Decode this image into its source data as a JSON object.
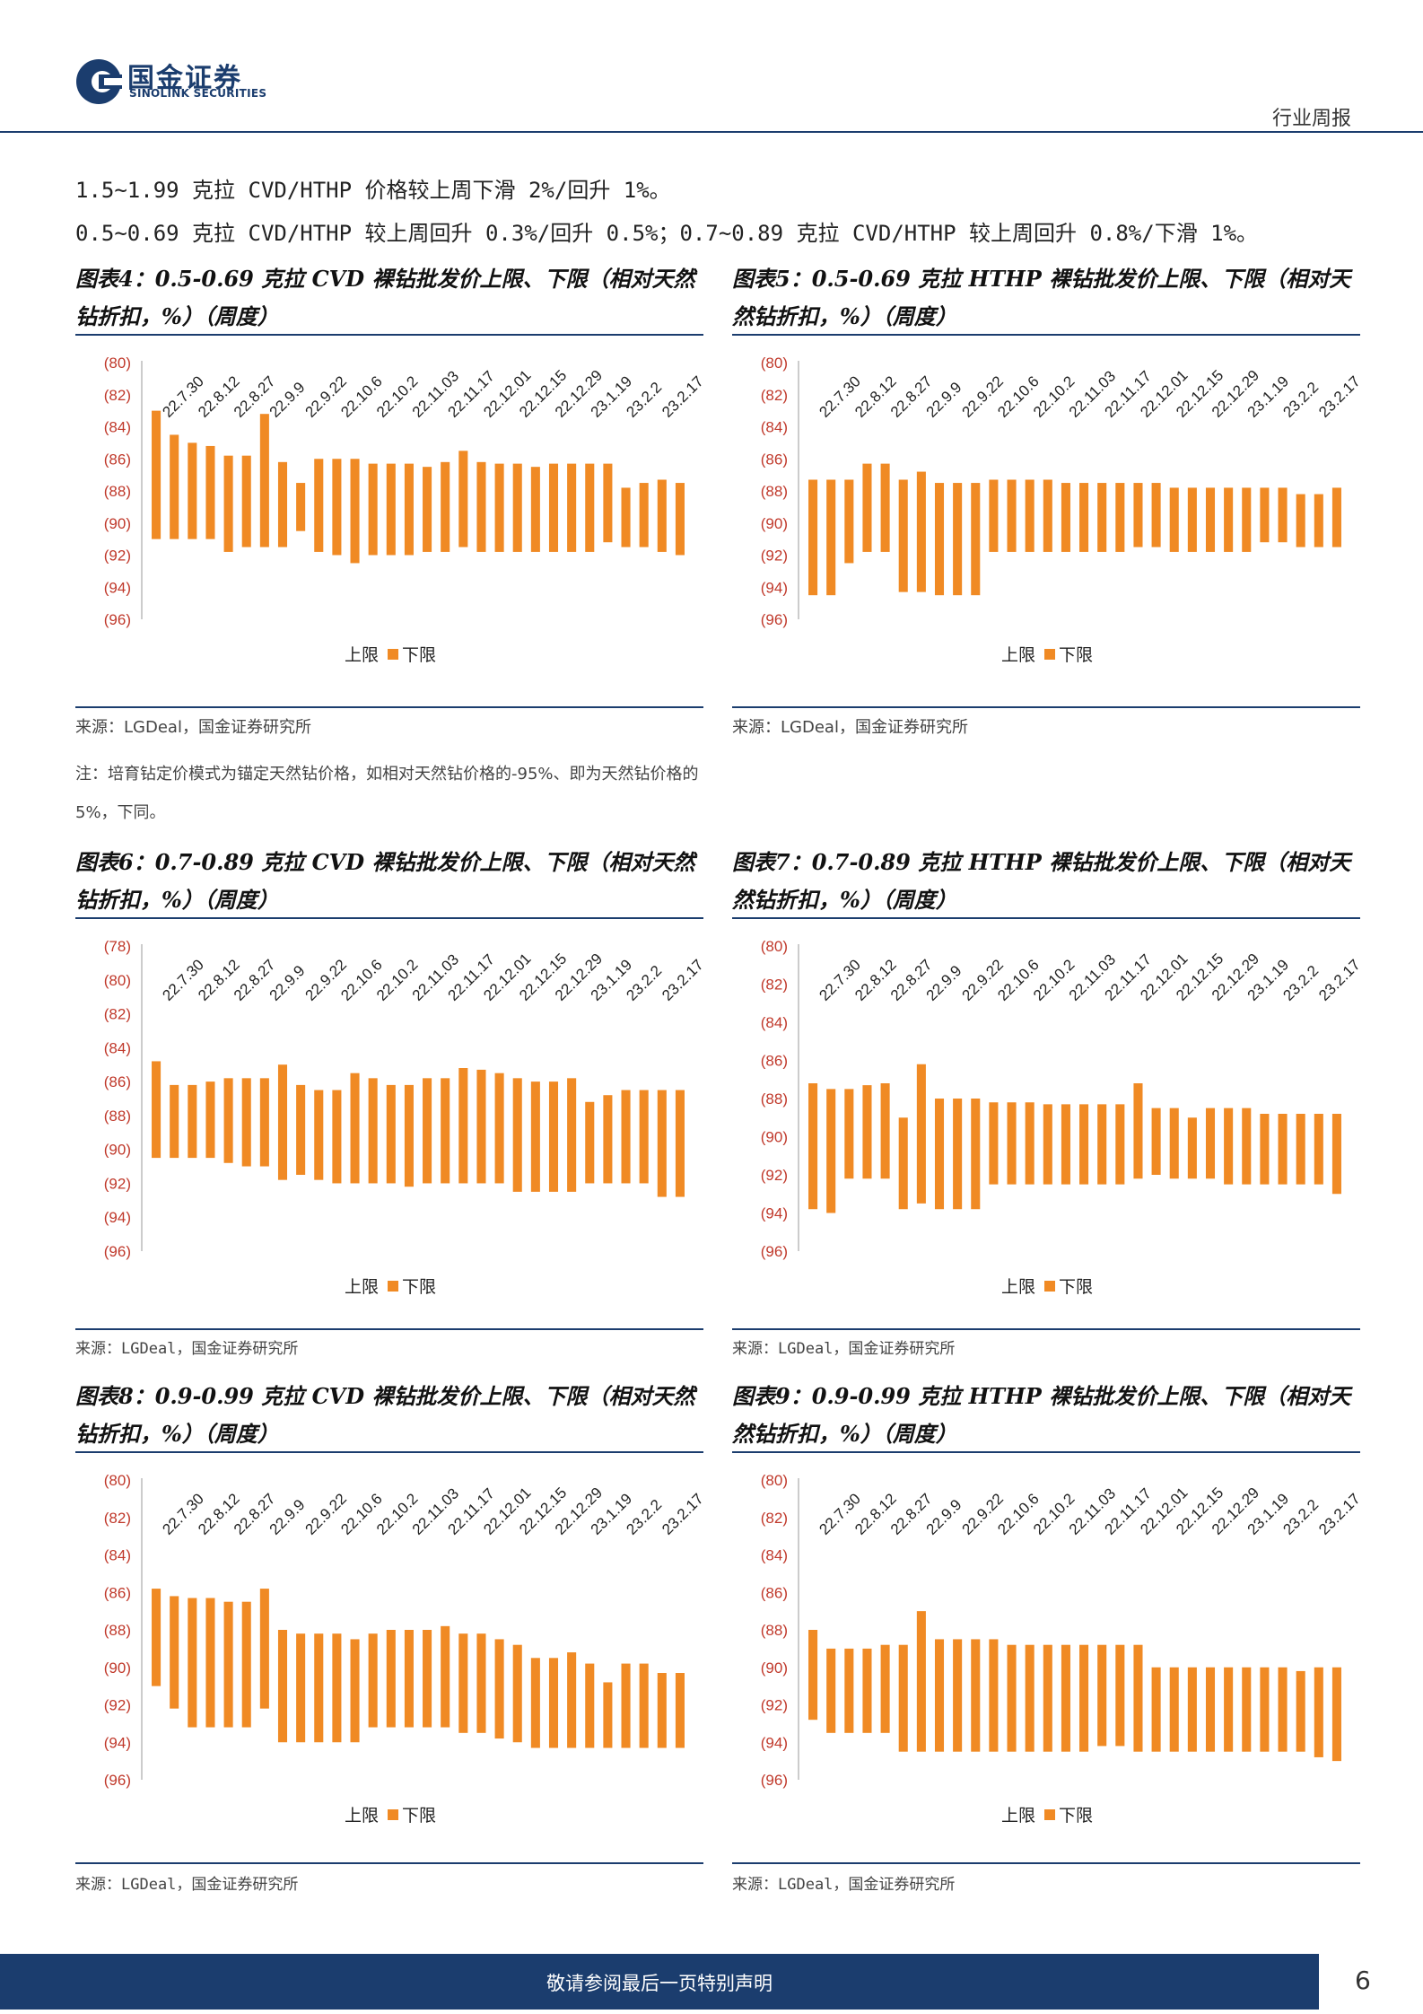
{
  "header": {
    "logo_cn": "国金证券",
    "logo_en": "SINOLINK SECURITIES",
    "report_type": "行业周报"
  },
  "intro": {
    "line1": "1.5~1.99 克拉 CVD/HTHP 价格较上周下滑 2%/回升 1%。",
    "line2": "0.5~0.69 克拉 CVD/HTHP 较上周回升 0.3%/回升 0.5%；0.7~0.89 克拉 CVD/HTHP 较上周回升 0.8%/下滑 1%。"
  },
  "note": "注：培育钻定价模式为锚定天然钻价格，如相对天然钻价格的-95%、即为天然钻价格的 5%，下同。",
  "colors": {
    "bar": "#f08a24",
    "axis_label": "#c0392b",
    "rule": "#1b3d6e"
  },
  "charts": [
    {
      "title": "图表4：0.5-0.69 克拉 CVD 裸钻批发价上限、下限（相对天然钻折扣，%）（周度）",
      "source": "来源：LGDeal，国金证券研究所",
      "source_mono": false,
      "legend_upper": "上限",
      "legend_lower": "下限"
    },
    {
      "title": "图表5：0.5-0.69 克拉 HTHP 裸钻批发价上限、下限（相对天然钻折扣，%）（周度）",
      "source": "来源：LGDeal，国金证券研究所",
      "source_mono": false,
      "legend_upper": "上限",
      "legend_lower": "下限"
    },
    {
      "title": "图表6：0.7-0.89 克拉 CVD 裸钻批发价上限、下限（相对天然钻折扣，%）（周度）",
      "source": "来源：LGDeal，国金证券研究所",
      "source_mono": true,
      "legend_upper": "上限",
      "legend_lower": "下限"
    },
    {
      "title": "图表7：0.7-0.89 克拉 HTHP 裸钻批发价上限、下限（相对天然钻折扣，%）（周度）",
      "source": "来源：LGDeal，国金证券研究所",
      "source_mono": true,
      "legend_upper": "上限",
      "legend_lower": "下限"
    },
    {
      "title": "图表8：0.9-0.99 克拉 CVD 裸钻批发价上限、下限（相对天然钻折扣，%）（周度）",
      "source": "来源：LGDeal，国金证券研究所",
      "source_mono": true,
      "legend_upper": "上限",
      "legend_lower": "下限"
    },
    {
      "title": "图表9：0.9-0.99 克拉 HTHP 裸钻批发价上限、下限（相对天然钻折扣，%）（周度）",
      "source": "来源：LGDeal，国金证券研究所",
      "source_mono": true,
      "legend_upper": "上限",
      "legend_lower": "下限"
    }
  ],
  "chart_data": [
    {
      "type": "bar",
      "chart_index": 4,
      "x_tick_labels": [
        "22.7.30",
        "22.8.12",
        "22.8.27",
        "22.9.9",
        "22.9.22",
        "22.10.6",
        "22.10.2",
        "22.11.03",
        "22.11.17",
        "22.12.01",
        "22.12.15",
        "22.12.29",
        "23.1.19",
        "23.2.2",
        "23.2.17"
      ],
      "ylim": [
        -96,
        -80
      ],
      "y_ticks": [
        "(80)",
        "(82)",
        "(84)",
        "(86)",
        "(88)",
        "(90)",
        "(92)",
        "(94)",
        "(96)"
      ],
      "y_tick_values": [
        -80,
        -82,
        -84,
        -86,
        -88,
        -90,
        -92,
        -94,
        -96
      ],
      "series": [
        {
          "name": "上限",
          "values": [
            -83.0,
            -84.5,
            -85.0,
            -85.2,
            -85.8,
            -85.8,
            -83.2,
            -86.2,
            -87.5,
            -86.0,
            -86.0,
            -86.0,
            -86.3,
            -86.3,
            -86.3,
            -86.5,
            -86.2,
            -85.5,
            -86.2,
            -86.3,
            -86.3,
            -86.5,
            -86.3,
            -86.3,
            -86.3,
            -86.3,
            -87.8,
            -87.5,
            -87.3,
            -87.5
          ]
        },
        {
          "name": "下限",
          "values": [
            -91.0,
            -91.0,
            -91.0,
            -91.0,
            -91.8,
            -91.5,
            -91.5,
            -91.5,
            -90.5,
            -91.8,
            -92.0,
            -92.5,
            -92.0,
            -92.0,
            -92.0,
            -91.8,
            -91.8,
            -91.5,
            -91.8,
            -91.8,
            -91.8,
            -91.8,
            -91.8,
            -91.8,
            -91.8,
            -91.2,
            -91.5,
            -91.5,
            -91.8,
            -92.0
          ]
        }
      ],
      "legend": "bottom-center"
    },
    {
      "type": "bar",
      "chart_index": 5,
      "x_tick_labels": [
        "22.7.30",
        "22.8.12",
        "22.8.27",
        "22.9.9",
        "22.9.22",
        "22.10.6",
        "22.10.2",
        "22.11.03",
        "22.11.17",
        "22.12.01",
        "22.12.15",
        "22.12.29",
        "23.1.19",
        "23.2.2",
        "23.2.17"
      ],
      "ylim": [
        -96,
        -80
      ],
      "y_ticks": [
        "(80)",
        "(82)",
        "(84)",
        "(86)",
        "(88)",
        "(90)",
        "(92)",
        "(94)",
        "(96)"
      ],
      "y_tick_values": [
        -80,
        -82,
        -84,
        -86,
        -88,
        -90,
        -92,
        -94,
        -96
      ],
      "series": [
        {
          "name": "上限",
          "values": [
            -87.3,
            -87.3,
            -87.3,
            -86.3,
            -86.3,
            -87.3,
            -86.8,
            -87.5,
            -87.5,
            -87.5,
            -87.3,
            -87.3,
            -87.3,
            -87.3,
            -87.5,
            -87.5,
            -87.5,
            -87.5,
            -87.5,
            -87.5,
            -87.8,
            -87.8,
            -87.8,
            -87.8,
            -87.8,
            -87.8,
            -87.8,
            -88.2,
            -88.2,
            -87.8
          ]
        },
        {
          "name": "下限",
          "values": [
            -94.5,
            -94.5,
            -92.5,
            -91.8,
            -91.8,
            -94.3,
            -94.3,
            -94.5,
            -94.5,
            -94.5,
            -91.8,
            -91.8,
            -91.8,
            -91.8,
            -91.8,
            -91.8,
            -91.8,
            -91.8,
            -91.5,
            -91.5,
            -91.8,
            -91.8,
            -91.8,
            -91.8,
            -91.8,
            -91.2,
            -91.2,
            -91.5,
            -91.5,
            -91.5
          ]
        }
      ],
      "legend": "bottom-center"
    },
    {
      "type": "bar",
      "chart_index": 6,
      "x_tick_labels": [
        "22.7.30",
        "22.8.12",
        "22.8.27",
        "22.9.9",
        "22.9.22",
        "22.10.6",
        "22.10.2",
        "22.11.03",
        "22.11.17",
        "22.12.01",
        "22.12.15",
        "22.12.29",
        "23.1.19",
        "23.2.2",
        "23.2.17"
      ],
      "ylim": [
        -96,
        -78
      ],
      "y_ticks": [
        "(78)",
        "(80)",
        "(82)",
        "(84)",
        "(86)",
        "(88)",
        "(90)",
        "(92)",
        "(94)",
        "(96)"
      ],
      "y_tick_values": [
        -78,
        -80,
        -82,
        -84,
        -86,
        -88,
        -90,
        -92,
        -94,
        -96
      ],
      "series": [
        {
          "name": "上限",
          "values": [
            -84.8,
            -86.2,
            -86.2,
            -86.0,
            -85.8,
            -85.8,
            -85.8,
            -85.0,
            -86.2,
            -86.5,
            -86.5,
            -85.5,
            -85.8,
            -86.2,
            -86.2,
            -85.8,
            -85.8,
            -85.2,
            -85.3,
            -85.5,
            -85.8,
            -86.0,
            -86.0,
            -85.8,
            -87.2,
            -86.8,
            -86.5,
            -86.5,
            -86.5,
            -86.5
          ]
        },
        {
          "name": "下限",
          "values": [
            -90.5,
            -90.5,
            -90.5,
            -90.5,
            -90.8,
            -91.0,
            -91.0,
            -91.8,
            -91.5,
            -91.8,
            -92.0,
            -92.0,
            -92.0,
            -92.0,
            -92.2,
            -92.0,
            -92.0,
            -92.0,
            -92.0,
            -92.0,
            -92.5,
            -92.5,
            -92.5,
            -92.5,
            -92.0,
            -92.0,
            -92.0,
            -92.0,
            -92.8,
            -92.8
          ]
        }
      ],
      "legend": "bottom-center"
    },
    {
      "type": "bar",
      "chart_index": 7,
      "x_tick_labels": [
        "22.7.30",
        "22.8.12",
        "22.8.27",
        "22.9.9",
        "22.9.22",
        "22.10.6",
        "22.10.2",
        "22.11.03",
        "22.11.17",
        "22.12.01",
        "22.12.15",
        "22.12.29",
        "23.1.19",
        "23.2.2",
        "23.2.17"
      ],
      "ylim": [
        -96,
        -80
      ],
      "y_ticks": [
        "(80)",
        "(82)",
        "(84)",
        "(86)",
        "(88)",
        "(90)",
        "(92)",
        "(94)",
        "(96)"
      ],
      "y_tick_values": [
        -80,
        -82,
        -84,
        -86,
        -88,
        -90,
        -92,
        -94,
        -96
      ],
      "series": [
        {
          "name": "上限",
          "values": [
            -87.2,
            -87.5,
            -87.5,
            -87.3,
            -87.2,
            -89.0,
            -86.2,
            -88.0,
            -88.0,
            -88.0,
            -88.2,
            -88.2,
            -88.2,
            -88.3,
            -88.3,
            -88.3,
            -88.3,
            -88.3,
            -87.2,
            -88.5,
            -88.5,
            -89.0,
            -88.5,
            -88.5,
            -88.5,
            -88.8,
            -88.8,
            -88.8,
            -88.8,
            -88.8
          ]
        },
        {
          "name": "下限",
          "values": [
            -93.8,
            -94.0,
            -92.2,
            -92.2,
            -92.2,
            -93.8,
            -93.5,
            -93.8,
            -93.8,
            -93.8,
            -92.5,
            -92.5,
            -92.5,
            -92.5,
            -92.5,
            -92.5,
            -92.5,
            -92.5,
            -92.2,
            -92.0,
            -92.2,
            -92.2,
            -92.2,
            -92.5,
            -92.5,
            -92.5,
            -92.5,
            -92.5,
            -92.5,
            -93.0
          ]
        }
      ],
      "legend": "bottom-center"
    },
    {
      "type": "bar",
      "chart_index": 8,
      "x_tick_labels": [
        "22.7.30",
        "22.8.12",
        "22.8.27",
        "22.9.9",
        "22.9.22",
        "22.10.6",
        "22.10.2",
        "22.11.03",
        "22.11.17",
        "22.12.01",
        "22.12.15",
        "22.12.29",
        "23.1.19",
        "23.2.2",
        "23.2.17"
      ],
      "ylim": [
        -96,
        -80
      ],
      "y_ticks": [
        "(80)",
        "(82)",
        "(84)",
        "(86)",
        "(88)",
        "(90)",
        "(92)",
        "(94)",
        "(96)"
      ],
      "y_tick_values": [
        -80,
        -82,
        -84,
        -86,
        -88,
        -90,
        -92,
        -94,
        -96
      ],
      "series": [
        {
          "name": "上限",
          "values": [
            -85.8,
            -86.2,
            -86.3,
            -86.3,
            -86.5,
            -86.5,
            -85.8,
            -88.0,
            -88.2,
            -88.2,
            -88.2,
            -88.5,
            -88.2,
            -88.0,
            -88.0,
            -88.0,
            -87.8,
            -88.2,
            -88.2,
            -88.5,
            -88.8,
            -89.5,
            -89.5,
            -89.2,
            -89.8,
            -90.8,
            -89.8,
            -89.8,
            -90.3,
            -90.3
          ]
        },
        {
          "name": "下限",
          "values": [
            -91.0,
            -92.2,
            -93.2,
            -93.2,
            -93.2,
            -93.2,
            -92.2,
            -94.0,
            -94.0,
            -94.0,
            -94.0,
            -94.0,
            -93.2,
            -93.2,
            -93.2,
            -93.2,
            -93.2,
            -93.5,
            -93.5,
            -93.8,
            -94.0,
            -94.3,
            -94.3,
            -94.3,
            -94.3,
            -94.3,
            -94.3,
            -94.3,
            -94.3,
            -94.3
          ]
        }
      ],
      "legend": "bottom-center"
    },
    {
      "type": "bar",
      "chart_index": 9,
      "x_tick_labels": [
        "22.7.30",
        "22.8.12",
        "22.8.27",
        "22.9.9",
        "22.9.22",
        "22.10.6",
        "22.10.2",
        "22.11.03",
        "22.11.17",
        "22.12.01",
        "22.12.15",
        "22.12.29",
        "23.1.19",
        "23.2.2",
        "23.2.17"
      ],
      "ylim": [
        -96,
        -80
      ],
      "y_ticks": [
        "(80)",
        "(82)",
        "(84)",
        "(86)",
        "(88)",
        "(90)",
        "(92)",
        "(94)",
        "(96)"
      ],
      "y_tick_values": [
        -80,
        -82,
        -84,
        -86,
        -88,
        -90,
        -92,
        -94,
        -96
      ],
      "series": [
        {
          "name": "上限",
          "values": [
            -88.0,
            -89.0,
            -89.0,
            -89.0,
            -88.8,
            -88.8,
            -87.0,
            -88.5,
            -88.5,
            -88.5,
            -88.5,
            -88.8,
            -88.8,
            -88.8,
            -88.8,
            -88.8,
            -88.8,
            -88.8,
            -88.8,
            -90.0,
            -90.0,
            -90.0,
            -90.0,
            -90.0,
            -90.0,
            -90.0,
            -90.0,
            -90.2,
            -90.0,
            -90.0
          ]
        },
        {
          "name": "下限",
          "values": [
            -92.8,
            -93.5,
            -93.5,
            -93.5,
            -93.5,
            -94.5,
            -94.5,
            -94.5,
            -94.5,
            -94.5,
            -94.5,
            -94.5,
            -94.5,
            -94.5,
            -94.5,
            -94.5,
            -94.2,
            -94.2,
            -94.5,
            -94.5,
            -94.5,
            -94.5,
            -94.5,
            -94.5,
            -94.5,
            -94.5,
            -94.5,
            -94.5,
            -94.8,
            -95.0
          ]
        }
      ],
      "legend": "bottom-center"
    }
  ],
  "footer": {
    "disclaimer": "敬请参阅最后一页特别声明",
    "page_number": "6"
  }
}
